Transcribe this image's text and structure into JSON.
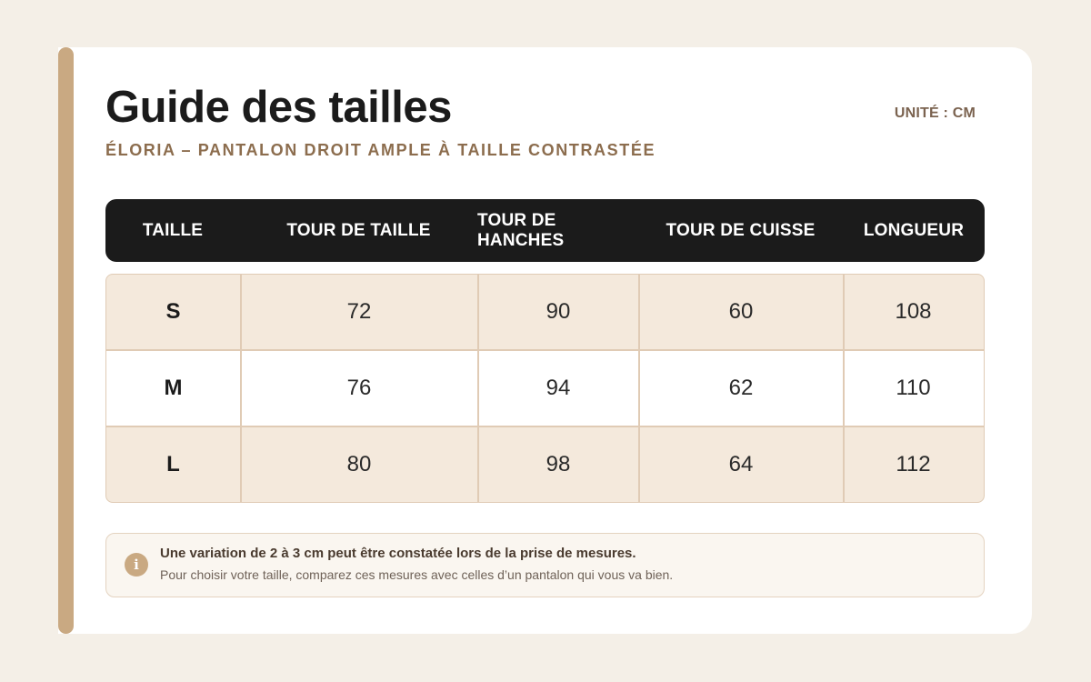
{
  "header": {
    "title": "Guide des tailles",
    "subtitle": "ÉLORIA – PANTALON DROIT AMPLE À TAILLE CONTRASTÉE",
    "unit": "UNITÉ : CM"
  },
  "table": {
    "columns": [
      "TAILLE",
      "TOUR DE TAILLE",
      "TOUR DE HANCHES",
      "TOUR DE CUISSE",
      "LONGUEUR"
    ],
    "rows": [
      [
        "S",
        "72",
        "90",
        "60",
        "108"
      ],
      [
        "M",
        "76",
        "94",
        "62",
        "110"
      ],
      [
        "L",
        "80",
        "98",
        "64",
        "112"
      ]
    ]
  },
  "note": {
    "icon": "info-icon",
    "icon_glyph": "i",
    "main": "Une variation de 2 à 3 cm peut être constatée lors de la prise de mesures.",
    "sub": "Pour choisir votre taille, comparez ces mesures avec celles d’un pantalon qui vous va bien."
  },
  "colors": {
    "accent": "#c9a982",
    "header_bg": "#1b1b1b",
    "row_tan": "#f4e9dc",
    "subtitle": "#8c6d4e"
  }
}
